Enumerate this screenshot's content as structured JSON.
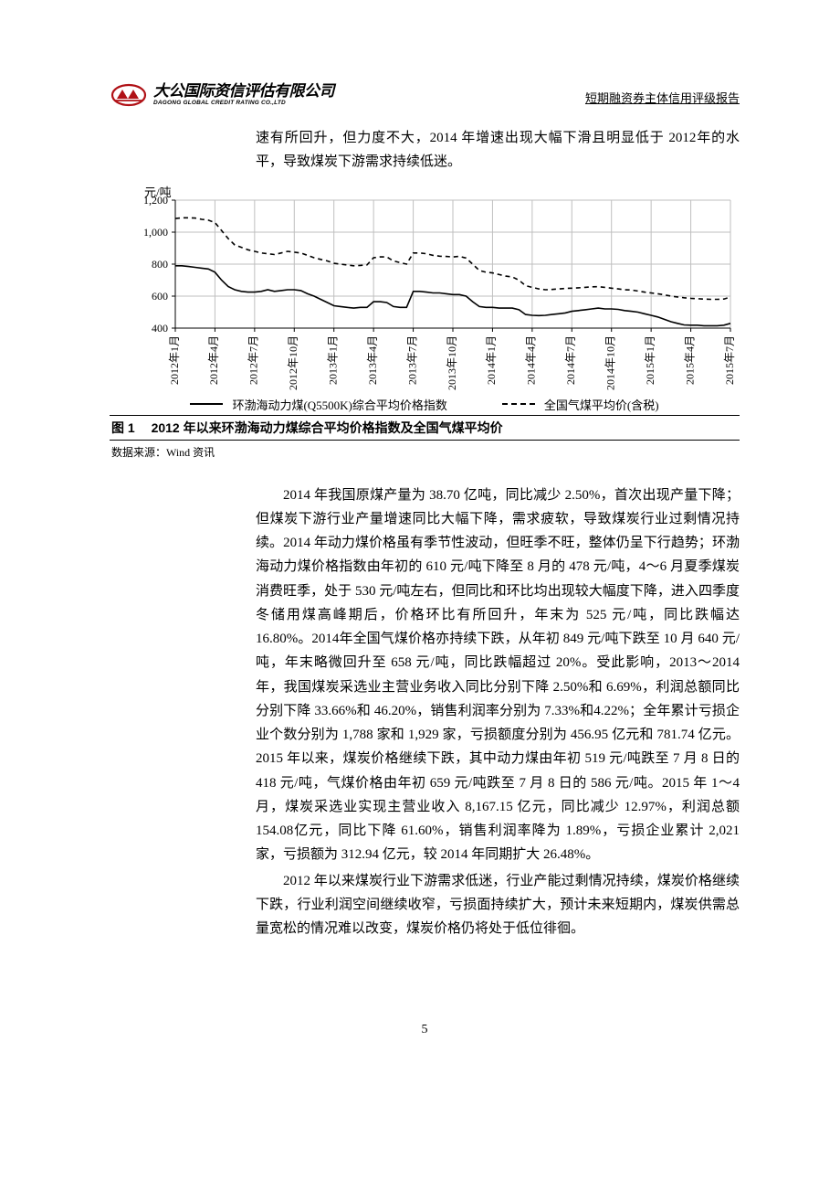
{
  "header": {
    "logo_cn": "大公国际资信评估有限公司",
    "logo_en": "DAGONG GLOBAL CREDIT RATING CO.,LTD",
    "doc_type": "短期融资券主体信用评级报告"
  },
  "intro": "速有所回升，但力度不大，2014 年增速出现大幅下滑且明显低于 2012年的水平，导致煤炭下游需求持续低迷。",
  "chart": {
    "type": "line",
    "y_unit": "元/吨",
    "ylim": [
      400,
      1200
    ],
    "ytick_step": 200,
    "yticks": [
      "400",
      "600",
      "800",
      "1,000",
      "1,200"
    ],
    "x_labels": [
      "2012年1月",
      "2012年4月",
      "2012年7月",
      "2012年10月",
      "2013年1月",
      "2013年4月",
      "2013年7月",
      "2013年10月",
      "2014年1月",
      "2014年4月",
      "2014年7月",
      "2014年10月",
      "2015年1月",
      "2015年4月",
      "2015年7月"
    ],
    "grid_color": "#bfbfbf",
    "background_color": "#ffffff",
    "line_color": "#000000",
    "series": [
      {
        "name": "环渤海动力煤(Q5500K)综合平均价格指数",
        "style": "solid",
        "line_width": 1.6,
        "values": [
          790,
          790,
          785,
          780,
          775,
          770,
          750,
          700,
          660,
          640,
          630,
          625,
          625,
          630,
          640,
          630,
          635,
          640,
          640,
          635,
          615,
          600,
          580,
          560,
          540,
          535,
          530,
          525,
          530,
          530,
          565,
          565,
          560,
          535,
          530,
          530,
          630,
          630,
          625,
          620,
          620,
          615,
          610,
          610,
          600,
          565,
          535,
          530,
          530,
          525,
          525,
          525,
          515,
          485,
          480,
          478,
          480,
          485,
          490,
          495,
          505,
          510,
          515,
          520,
          525,
          520,
          520,
          517,
          510,
          505,
          500,
          490,
          480,
          470,
          455,
          440,
          430,
          420,
          418,
          418,
          415,
          415,
          415,
          418,
          430
        ]
      },
      {
        "name": "全国气煤平均价(含税)",
        "style": "dashed",
        "line_width": 1.6,
        "values": [
          1085,
          1090,
          1090,
          1088,
          1080,
          1075,
          1060,
          1010,
          960,
          920,
          905,
          890,
          880,
          870,
          865,
          860,
          870,
          880,
          875,
          870,
          855,
          840,
          830,
          820,
          805,
          800,
          795,
          790,
          792,
          795,
          840,
          845,
          845,
          820,
          810,
          800,
          870,
          870,
          865,
          855,
          850,
          848,
          845,
          849,
          838,
          800,
          760,
          750,
          745,
          735,
          725,
          720,
          700,
          665,
          655,
          645,
          640,
          642,
          645,
          648,
          650,
          652,
          655,
          658,
          659,
          655,
          650,
          645,
          640,
          638,
          632,
          625,
          620,
          615,
          608,
          600,
          595,
          590,
          586,
          584,
          582,
          580,
          580,
          582,
          595
        ]
      }
    ],
    "legend": [
      {
        "label": "环渤海动力煤(Q5500K)综合平均价格指数",
        "style": "solid"
      },
      {
        "label": "全国气煤平均价(含税)",
        "style": "dashed"
      }
    ]
  },
  "figure": {
    "number": "图 1",
    "caption": "2012 年以来环渤海动力煤综合平均价格指数及全国气煤平均价",
    "source": "数据来源：Wind 资讯"
  },
  "body1": "2014 年我国原煤产量为 38.70 亿吨，同比减少 2.50%，首次出现产量下降；但煤炭下游行业产量增速同比大幅下降，需求疲软，导致煤炭行业过剩情况持续。2014 年动力煤价格虽有季节性波动，但旺季不旺，整体仍呈下行趋势；环渤海动力煤价格指数由年初的 610 元/吨下降至 8 月的 478 元/吨，4～6 月夏季煤炭消费旺季，处于 530 元/吨左右，但同比和环比均出现较大幅度下降，进入四季度冬储用煤高峰期后，价格环比有所回升，年末为 525 元/吨，同比跌幅达 16.80%。2014年全国气煤价格亦持续下跌，从年初 849 元/吨下跌至 10 月 640 元/吨，年末略微回升至 658 元/吨，同比跌幅超过 20%。受此影响，2013～2014年，我国煤炭采选业主营业务收入同比分别下降 2.50%和 6.69%，利润总额同比分别下降 33.66%和 46.20%，销售利润率分别为 7.33%和4.22%；全年累计亏损企业个数分别为 1,788 家和 1,929 家，亏损额度分别为 456.95 亿元和 781.74 亿元。2015 年以来，煤炭价格继续下跌，其中动力煤由年初 519 元/吨跌至 7 月 8 日的 418 元/吨，气煤价格由年初 659 元/吨跌至 7 月 8 日的 586 元/吨。2015 年 1～4 月，煤炭采选业实现主营业收入 8,167.15 亿元，同比减少 12.97%，利润总额 154.08亿元，同比下降 61.60%，销售利润率降为 1.89%，亏损企业累计 2,021家，亏损额为 312.94 亿元，较 2014 年同期扩大 26.48%。",
  "body2": "2012 年以来煤炭行业下游需求低迷，行业产能过剩情况持续，煤炭价格继续下跌，行业利润空间继续收窄，亏损面持续扩大，预计未来短期内，煤炭供需总量宽松的情况难以改变，煤炭价格仍将处于低位徘徊。",
  "page_number": "5"
}
